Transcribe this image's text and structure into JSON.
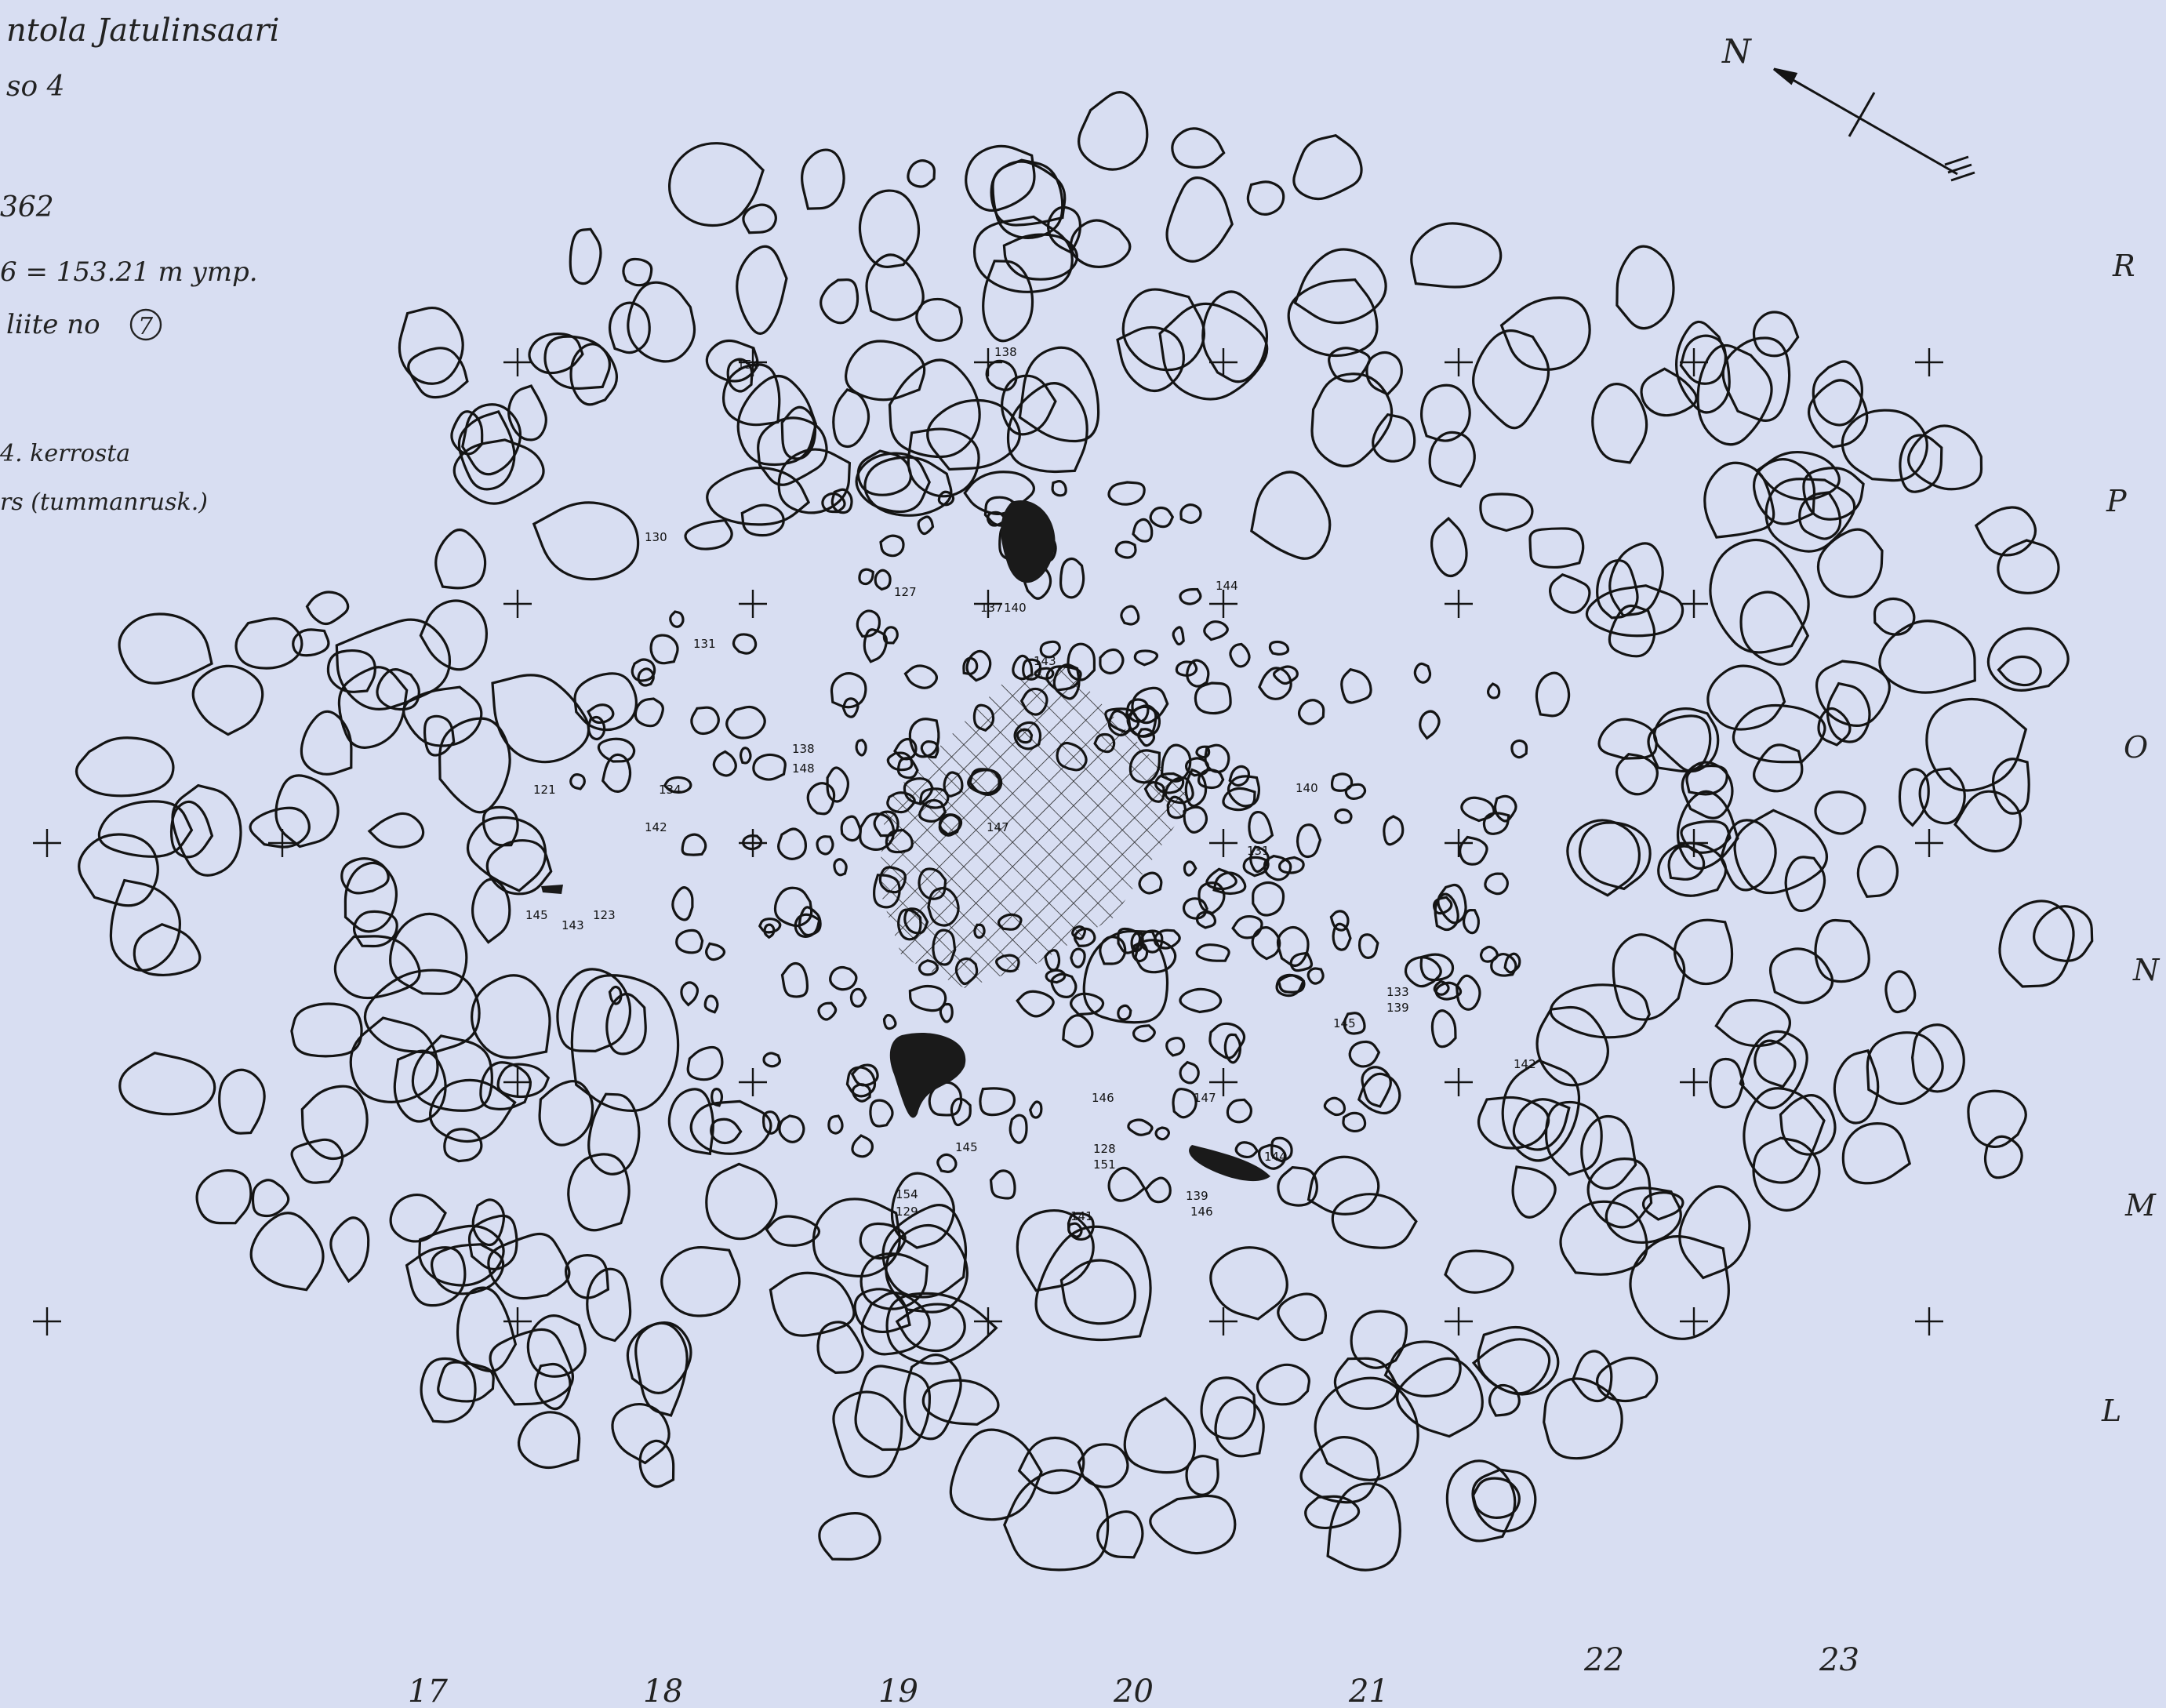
{
  "header": {
    "lines": [
      "ntola  Jatulinsaari",
      "so 4",
      "362",
      "6 = 153.21 m ymp.",
      "liite no",
      "4. kerrosta",
      "rs (tummanrusk.)"
    ],
    "appendix_number": "7"
  },
  "north_arrow": {
    "label": "N"
  },
  "grid": {
    "col_labels": [
      "17",
      "18",
      "19",
      "20",
      "21",
      "22",
      "23"
    ],
    "row_labels": [
      "R",
      "P",
      "O",
      "N",
      "M",
      "L"
    ]
  },
  "stone_labels": [
    "130",
    "131",
    "127",
    "140",
    "144",
    "143",
    "138",
    "148",
    "121",
    "134",
    "142",
    "147",
    "145",
    "143",
    "123",
    "133",
    "139",
    "142",
    "146",
    "147",
    "144",
    "145",
    "154",
    "129",
    "128",
    "151",
    "139",
    "146",
    "141",
    "154",
    "138",
    "137",
    "131",
    "140",
    "145"
  ],
  "colors": {
    "paper": "#d8def2",
    "ink": "#141414"
  }
}
